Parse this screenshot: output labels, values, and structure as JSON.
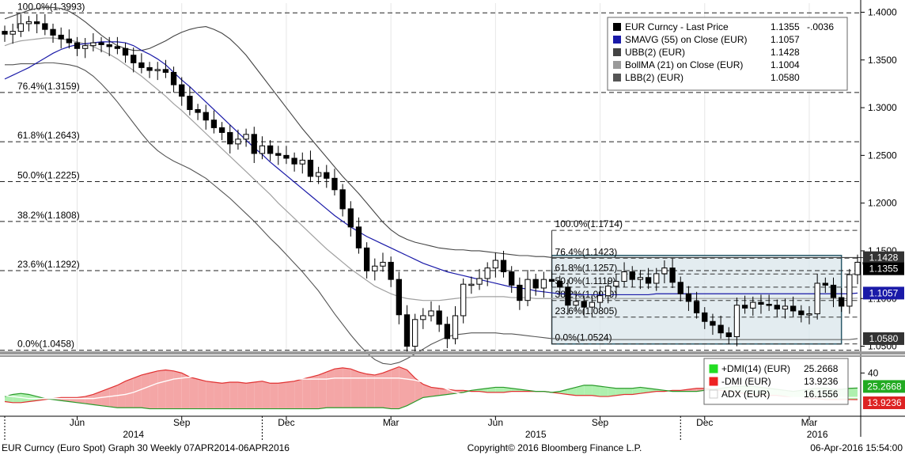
{
  "footer": {
    "left": "EUR Curncy (Euro Spot) Graph 30  Weekly 07APR2014-06APR2016",
    "center": "Copyright© 2016 Bloomberg Finance L.P.",
    "right": "06-Apr-2016 15:54:00"
  },
  "legend": {
    "rows": [
      {
        "label": "EUR Curncy - Last Price",
        "value": "1.1355",
        "change": "-.0036",
        "color": "#000000"
      },
      {
        "label": "SMAVG (55) on Close (EUR)",
        "value": "1.1057",
        "change": "",
        "color": "#1a1aa8"
      },
      {
        "label": "UBB(2) (EUR)",
        "value": "1.1428",
        "change": "",
        "color": "#444444"
      },
      {
        "label": "BollMA (21) on Close (EUR)",
        "value": "1.1004",
        "change": "",
        "color": "#9a9a9a"
      },
      {
        "label": "LBB(2) (EUR)",
        "value": "1.0580",
        "change": "",
        "color": "#555555"
      }
    ]
  },
  "dmi_legend": {
    "rows": [
      {
        "label": "+DMI(14) (EUR)",
        "value": "25.2668",
        "color": "#22dd22"
      },
      {
        "label": "-DMI (EUR)",
        "value": "13.9236",
        "color": "#ee2222"
      },
      {
        "label": "ADX (EUR)",
        "value": "16.1556",
        "color": "#ffffff"
      }
    ]
  },
  "axis_badges": [
    {
      "text": "1.1428",
      "value": 1.1428,
      "color": "#333333"
    },
    {
      "text": "1.1355",
      "value": 1.1355,
      "color": "#000000"
    },
    {
      "text": "1.1057",
      "value": 1.1057,
      "color": "#1a1aa8"
    },
    {
      "text": "1.0580",
      "value": 1.058,
      "color": "#333333"
    }
  ],
  "dmi_badges": [
    {
      "text": "25.2668",
      "value": 25.2668,
      "color": "#22aa22"
    },
    {
      "text": "13.9236",
      "value": 13.9236,
      "color": "#dd2222"
    }
  ],
  "chart_data": {
    "type": "candlestick",
    "x_axis": {
      "months": [
        "Jun",
        "Sep",
        "Dec",
        "Mar",
        "Jun",
        "Sep",
        "Dec",
        "Mar"
      ],
      "month_weeks": [
        9,
        22,
        35,
        48,
        61,
        74,
        87,
        100
      ],
      "years": [
        {
          "label": "2014",
          "week": 16
        },
        {
          "label": "2015",
          "week": 66
        },
        {
          "label": "2016",
          "week": 101
        }
      ],
      "week_count": 106
    },
    "y_axis": {
      "ticks": [
        "1.4000",
        "1.3500",
        "1.3000",
        "1.2500",
        "1.2000",
        "1.1500",
        "1.1000",
        "1.0500"
      ],
      "tick_values": [
        1.4,
        1.35,
        1.3,
        1.25,
        1.2,
        1.15,
        1.1,
        1.05
      ],
      "range": [
        1.0455,
        1.4095
      ]
    },
    "fib_major": [
      {
        "label": "100.0%(1.3993)",
        "value": 1.3993
      },
      {
        "label": "76.4%(1.3159)",
        "value": 1.3159
      },
      {
        "label": "61.8%(1.2643)",
        "value": 1.2643
      },
      {
        "label": "50.0%(1.2225)",
        "value": 1.2225
      },
      {
        "label": "38.2%(1.1808)",
        "value": 1.1808
      },
      {
        "label": "23.6%(1.1292)",
        "value": 1.1292
      },
      {
        "label": "0.0%(1.0458)",
        "value": 1.0458
      }
    ],
    "fib_minor": [
      {
        "label": "100.0%(1.1714)",
        "value": 1.1714
      },
      {
        "label": "76.4%(1.1423)",
        "value": 1.1423
      },
      {
        "label": "61.8%(1.1257)",
        "value": 1.1257
      },
      {
        "label": "50.0%(1.1119)",
        "value": 1.1119
      },
      {
        "label": "38.2%(1.0979)",
        "value": 1.0979
      },
      {
        "label": "23.6%(1.0805)",
        "value": 1.0805
      },
      {
        "label": "0.0%(1.0524)",
        "value": 1.0524
      }
    ],
    "range_box": {
      "week_start": 68,
      "week_end": 104,
      "high": 1.1452,
      "low": 1.0524
    },
    "close": [
      1.377,
      1.38,
      1.388,
      1.39,
      1.388,
      1.382,
      1.376,
      1.372,
      1.368,
      1.362,
      1.365,
      1.368,
      1.366,
      1.364,
      1.362,
      1.355,
      1.347,
      1.342,
      1.339,
      1.34,
      1.337,
      1.324,
      1.312,
      1.298,
      1.295,
      1.287,
      1.279,
      1.274,
      1.262,
      1.267,
      1.272,
      1.252,
      1.26,
      1.252,
      1.25,
      1.247,
      1.241,
      1.245,
      1.228,
      1.232,
      1.226,
      1.214,
      1.194,
      1.175,
      1.153,
      1.129,
      1.134,
      1.138,
      1.12,
      1.083,
      1.05,
      1.078,
      1.082,
      1.087,
      1.073,
      1.058,
      1.082,
      1.115,
      1.115,
      1.121,
      1.132,
      1.14,
      1.128,
      1.114,
      1.098,
      1.12,
      1.111,
      1.12,
      1.118,
      1.112,
      1.093,
      1.097,
      1.091,
      1.096,
      1.103,
      1.113,
      1.118,
      1.128,
      1.12,
      1.122,
      1.116,
      1.126,
      1.132,
      1.117,
      1.105,
      1.097,
      1.085,
      1.076,
      1.072,
      1.064,
      1.06,
      1.093,
      1.09,
      1.096,
      1.094,
      1.093,
      1.089,
      1.092,
      1.087,
      1.083,
      1.084,
      1.116,
      1.114,
      1.101,
      1.092,
      1.125,
      1.138,
      1.136,
      1.1355
    ],
    "sma55": [
      1.33,
      1.334,
      1.338,
      1.342,
      1.347,
      1.352,
      1.357,
      1.361,
      1.364,
      1.366,
      1.367,
      1.368,
      1.369,
      1.369,
      1.369,
      1.368,
      1.365,
      1.36,
      1.356,
      1.351,
      1.345,
      1.337,
      1.329,
      1.322,
      1.314,
      1.306,
      1.298,
      1.29,
      1.282,
      1.274,
      1.266,
      1.258,
      1.251,
      1.243,
      1.236,
      1.229,
      1.222,
      1.215,
      1.208,
      1.201,
      1.194,
      1.187,
      1.181,
      1.175,
      1.17,
      1.165,
      1.161,
      1.157,
      1.153,
      1.149,
      1.145,
      1.141,
      1.137,
      1.134,
      1.131,
      1.128,
      1.126,
      1.124,
      1.122,
      1.12,
      1.118,
      1.116,
      1.114,
      1.112,
      1.111,
      1.11,
      1.108,
      1.107,
      1.106,
      1.105,
      1.105,
      1.104,
      1.104,
      1.104,
      1.104,
      1.104,
      1.104,
      1.104,
      1.104,
      1.104,
      1.104,
      1.105,
      1.105,
      1.105,
      1.105,
      1.105,
      1.105,
      1.105,
      1.105,
      1.105,
      1.105,
      1.105,
      1.105,
      1.105,
      1.105,
      1.105,
      1.105,
      1.105,
      1.105,
      1.105,
      1.105,
      1.105,
      1.105,
      1.105,
      1.105,
      1.105,
      1.1057
    ],
    "ubb": [
      1.393,
      1.396,
      1.399,
      1.402,
      1.404,
      1.405,
      1.405,
      1.404,
      1.401,
      1.396,
      1.39,
      1.383,
      1.376,
      1.37,
      1.365,
      1.362,
      1.36,
      1.36,
      1.362,
      1.366,
      1.37,
      1.375,
      1.379,
      1.382,
      1.384,
      1.385,
      1.382,
      1.378,
      1.372,
      1.364,
      1.355,
      1.344,
      1.333,
      1.322,
      1.311,
      1.3,
      1.289,
      1.278,
      1.268,
      1.258,
      1.248,
      1.238,
      1.228,
      1.219,
      1.21,
      1.2,
      1.19,
      1.18,
      1.172,
      1.166,
      1.162,
      1.159,
      1.157,
      1.155,
      1.153,
      1.152,
      1.151,
      1.151,
      1.15,
      1.15,
      1.149,
      1.148,
      1.147,
      1.146,
      1.145,
      1.145,
      1.144,
      1.144,
      1.143,
      1.143,
      1.143,
      1.143,
      1.143,
      1.143,
      1.143,
      1.143,
      1.143,
      1.143,
      1.143,
      1.143,
      1.143,
      1.143,
      1.143,
      1.143,
      1.143,
      1.143,
      1.143,
      1.143,
      1.143,
      1.143,
      1.143,
      1.143,
      1.143,
      1.143,
      1.143,
      1.143,
      1.143,
      1.143,
      1.143,
      1.143,
      1.143,
      1.143,
      1.143,
      1.143,
      1.143,
      1.143,
      1.143,
      1.1428
    ],
    "bollma": [
      1.365,
      1.368,
      1.37,
      1.371,
      1.372,
      1.373,
      1.373,
      1.372,
      1.371,
      1.369,
      1.367,
      1.364,
      1.36,
      1.356,
      1.351,
      1.345,
      1.339,
      1.333,
      1.326,
      1.319,
      1.312,
      1.304,
      1.297,
      1.289,
      1.281,
      1.273,
      1.265,
      1.257,
      1.249,
      1.241,
      1.233,
      1.225,
      1.217,
      1.209,
      1.2,
      1.192,
      1.184,
      1.176,
      1.168,
      1.16,
      1.152,
      1.145,
      1.138,
      1.131,
      1.125,
      1.119,
      1.113,
      1.109,
      1.105,
      1.102,
      1.1,
      1.099,
      1.098,
      1.098,
      1.098,
      1.099,
      1.1,
      1.101,
      1.101,
      1.102,
      1.102,
      1.102,
      1.102,
      1.101,
      1.101,
      1.101,
      1.1,
      1.1,
      1.1,
      1.1,
      1.1,
      1.1,
      1.1,
      1.1,
      1.1,
      1.1,
      1.1,
      1.1,
      1.1,
      1.1,
      1.1,
      1.1,
      1.1,
      1.1,
      1.1,
      1.1,
      1.1,
      1.1,
      1.1,
      1.1,
      1.1,
      1.1,
      1.1,
      1.1,
      1.1,
      1.1,
      1.1,
      1.1,
      1.1,
      1.1,
      1.1,
      1.1,
      1.1,
      1.1,
      1.1,
      1.1,
      1.1004
    ],
    "lbb": [
      1.345,
      1.345,
      1.346,
      1.346,
      1.346,
      1.347,
      1.347,
      1.346,
      1.345,
      1.343,
      1.339,
      1.333,
      1.325,
      1.316,
      1.306,
      1.295,
      1.284,
      1.273,
      1.263,
      1.255,
      1.249,
      1.244,
      1.24,
      1.236,
      1.231,
      1.226,
      1.219,
      1.212,
      1.205,
      1.197,
      1.189,
      1.181,
      1.172,
      1.163,
      1.155,
      1.146,
      1.137,
      1.128,
      1.118,
      1.108,
      1.096,
      1.084,
      1.073,
      1.062,
      1.052,
      1.043,
      1.036,
      1.032,
      1.031,
      1.033,
      1.037,
      1.042,
      1.047,
      1.052,
      1.056,
      1.06,
      1.062,
      1.063,
      1.064,
      1.064,
      1.064,
      1.064,
      1.063,
      1.063,
      1.062,
      1.061,
      1.06,
      1.059,
      1.058,
      1.058,
      1.057,
      1.057,
      1.057,
      1.057,
      1.057,
      1.057,
      1.057,
      1.057,
      1.057,
      1.057,
      1.057,
      1.057,
      1.057,
      1.057,
      1.057,
      1.057,
      1.057,
      1.057,
      1.057,
      1.057,
      1.057,
      1.057,
      1.057,
      1.057,
      1.057,
      1.057,
      1.057,
      1.057,
      1.057,
      1.057,
      1.057,
      1.057,
      1.057,
      1.057,
      1.057,
      1.057,
      1.058
    ],
    "dmi": {
      "ticks": [
        "40"
      ],
      "tick_values": [
        40
      ],
      "range": [
        0,
        55
      ],
      "plus": [
        17,
        19,
        20,
        19,
        17,
        15,
        14,
        13,
        12,
        11,
        10,
        9,
        8,
        7,
        6,
        6,
        6,
        6,
        5,
        5,
        5,
        5,
        5,
        5,
        5,
        5,
        5,
        5,
        5,
        5,
        5,
        5,
        5,
        5,
        5,
        5,
        5,
        5,
        5,
        5,
        6,
        6,
        6,
        6,
        6,
        6,
        6,
        6,
        5,
        5,
        8,
        12,
        16,
        17,
        18,
        19,
        20,
        21,
        23,
        24,
        25,
        26,
        26,
        25,
        24,
        23,
        22,
        22,
        21,
        22,
        24,
        26,
        28,
        28,
        27,
        26,
        25,
        25,
        25,
        26,
        25,
        24,
        23,
        22,
        22,
        22,
        22,
        23,
        24,
        25,
        26,
        27,
        27,
        27,
        26,
        25,
        24,
        23,
        22,
        23,
        24,
        25,
        25,
        24,
        24,
        25,
        25.2668
      ],
      "minus": [
        12,
        11,
        11,
        12,
        13,
        14,
        15,
        16,
        16,
        16,
        17,
        19,
        22,
        25,
        28,
        32,
        35,
        38,
        40,
        42,
        43,
        42,
        40,
        36,
        34,
        32,
        31,
        30,
        31,
        31,
        30,
        31,
        32,
        30,
        30,
        31,
        32,
        34,
        36,
        38,
        41,
        44,
        45,
        44,
        41,
        39,
        38,
        40,
        43,
        46,
        43,
        35,
        29,
        26,
        25,
        24,
        23,
        23,
        22,
        22,
        21,
        21,
        21,
        22,
        22,
        22,
        22,
        22,
        21,
        20,
        19,
        18,
        18,
        18,
        17,
        17,
        18,
        19,
        19,
        20,
        21,
        22,
        22,
        23,
        23,
        24,
        25,
        25,
        24,
        23,
        22,
        21,
        20,
        19,
        18,
        18,
        18,
        17,
        16,
        16,
        15,
        15,
        14,
        14,
        14,
        14,
        13.9236
      ],
      "adx": [
        18,
        17,
        16,
        15,
        15,
        15,
        15,
        15,
        15,
        15,
        15,
        15,
        16,
        17,
        18,
        19,
        21,
        24,
        27,
        30,
        32,
        34,
        35,
        36,
        37,
        37,
        37,
        37,
        37,
        36,
        36,
        36,
        36,
        35,
        35,
        34,
        34,
        34,
        34,
        34,
        34,
        35,
        35,
        35,
        35,
        35,
        35,
        35,
        35,
        35,
        34,
        33,
        31,
        29,
        27,
        24,
        21,
        19,
        17,
        15,
        14,
        13,
        12,
        12,
        11,
        11,
        11,
        10,
        10,
        10,
        10,
        10,
        10,
        10,
        10,
        11,
        11,
        11,
        11,
        11,
        11,
        11,
        11,
        11,
        11,
        12,
        12,
        12,
        13,
        13,
        14,
        14,
        15,
        15,
        15,
        15,
        16,
        16,
        16,
        16,
        16,
        16,
        16,
        16,
        16,
        16,
        16.1556
      ]
    }
  }
}
